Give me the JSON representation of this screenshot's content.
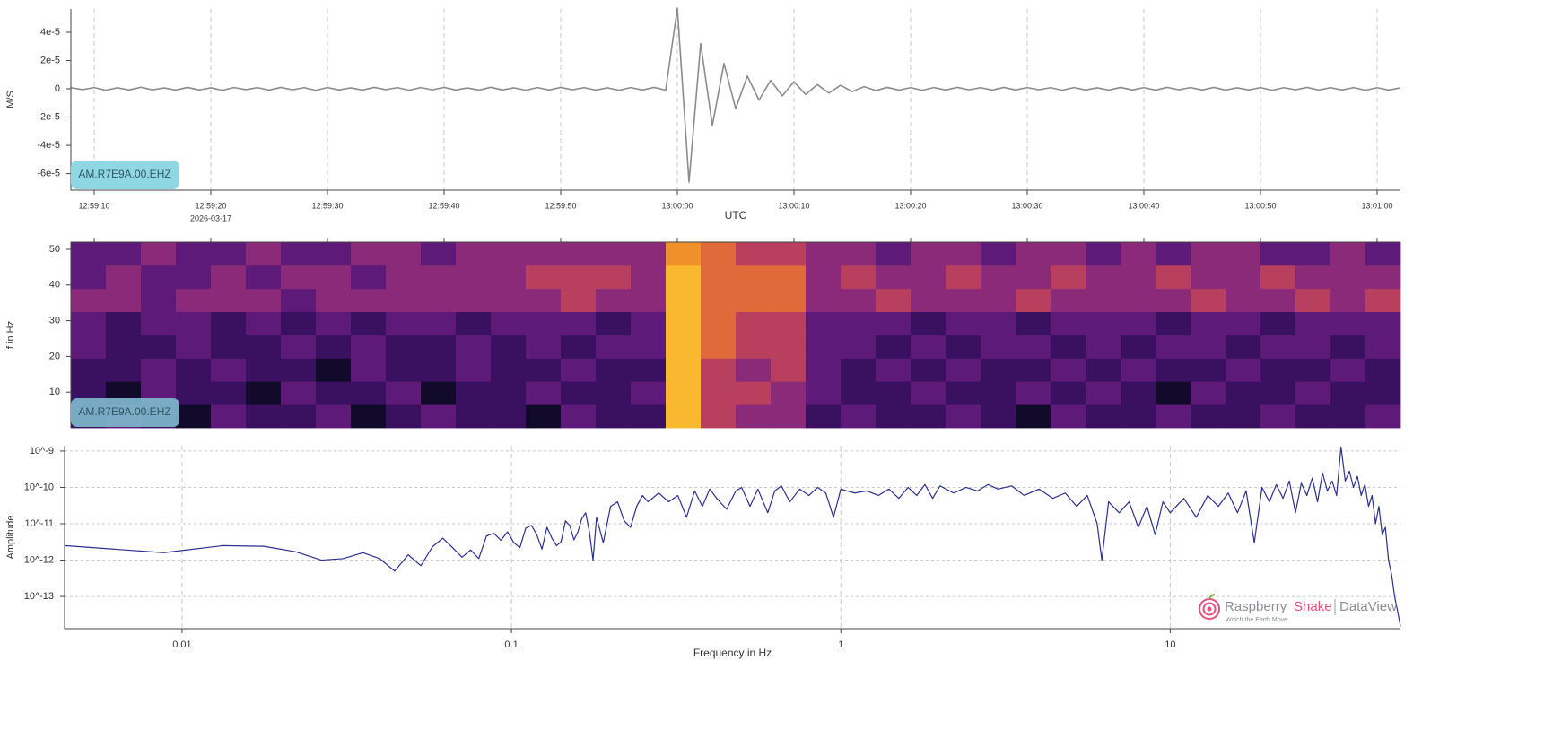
{
  "chart_data": [
    {
      "type": "line",
      "ylabel": "M/S",
      "xlabel": "UTC",
      "date_label": "2026-03-17",
      "station_label": "AM.R7E9A.00.EHZ",
      "color": "#8c8c8c",
      "grid": "x",
      "xlim": [
        "12:59:08",
        "13:01:02"
      ],
      "xticks": [
        "12:59:10",
        "12:59:20",
        "12:59:30",
        "12:59:40",
        "12:59:50",
        "13:00:00",
        "13:00:10",
        "13:00:20",
        "13:00:30",
        "13:00:40",
        "13:00:50",
        "13:01:00"
      ],
      "ylim": [
        -7.17e-05,
        5.65e-05
      ],
      "yticks": [
        {
          "value": 4e-05,
          "label": "4e-5"
        },
        {
          "value": 2e-05,
          "label": "2e-5"
        },
        0,
        {
          "value": -2e-05,
          "label": "-2e-5"
        },
        {
          "value": -4e-05,
          "label": "-4e-5"
        },
        {
          "value": -6e-05,
          "label": "-6e-5"
        }
      ],
      "x": [
        "12:59:08",
        "12:59:09",
        "12:59:10",
        "12:59:11",
        "12:59:12",
        "12:59:13",
        "12:59:14",
        "12:59:15",
        "12:59:16",
        "12:59:17",
        "12:59:18",
        "12:59:19",
        "12:59:20",
        "12:59:21",
        "12:59:22",
        "12:59:23",
        "12:59:24",
        "12:59:25",
        "12:59:26",
        "12:59:27",
        "12:59:28",
        "12:59:29",
        "12:59:30",
        "12:59:31",
        "12:59:32",
        "12:59:33",
        "12:59:34",
        "12:59:35",
        "12:59:36",
        "12:59:37",
        "12:59:38",
        "12:59:39",
        "12:59:40",
        "12:59:41",
        "12:59:42",
        "12:59:43",
        "12:59:44",
        "12:59:45",
        "12:59:46",
        "12:59:47",
        "12:59:48",
        "12:59:49",
        "12:59:50",
        "12:59:51",
        "12:59:52",
        "12:59:53",
        "12:59:54",
        "12:59:55",
        "12:59:56",
        "12:59:57",
        "12:59:58",
        "12:59:59",
        "13:00:00",
        "13:00:01",
        "13:00:02",
        "13:00:03",
        "13:00:04",
        "13:00:05",
        "13:00:06",
        "13:00:07",
        "13:00:08",
        "13:00:09",
        "13:00:10",
        "13:00:11",
        "13:00:12",
        "13:00:13",
        "13:00:14",
        "13:00:15",
        "13:00:16",
        "13:00:17",
        "13:00:18",
        "13:00:19",
        "13:00:20",
        "13:00:21",
        "13:00:22",
        "13:00:23",
        "13:00:24",
        "13:00:25",
        "13:00:26",
        "13:00:27",
        "13:00:28",
        "13:00:29",
        "13:00:30",
        "13:00:31",
        "13:00:32",
        "13:00:33",
        "13:00:34",
        "13:00:35",
        "13:00:36",
        "13:00:37",
        "13:00:38",
        "13:00:39",
        "13:00:40",
        "13:00:41",
        "13:00:42",
        "13:00:43",
        "13:00:44",
        "13:00:45",
        "13:00:46",
        "13:00:47",
        "13:00:48",
        "13:00:49",
        "13:00:50",
        "13:00:51",
        "13:00:52",
        "13:00:53",
        "13:00:54",
        "13:00:55",
        "13:00:56",
        "13:00:57",
        "13:00:58",
        "13:00:59",
        "13:01:00",
        "13:01:01",
        "13:01:02"
      ],
      "values": [
        8e-07,
        -6e-07,
        9e-07,
        -1e-06,
        7e-07,
        -8e-07,
        1.1e-06,
        -7e-07,
        6e-07,
        -9e-07,
        1e-06,
        -8e-07,
        7e-07,
        -1e-06,
        9e-07,
        -6e-07,
        8e-07,
        -9e-07,
        1e-06,
        -7e-07,
        8e-07,
        -1.1e-06,
        9e-07,
        -8e-07,
        7e-07,
        -9e-07,
        1e-06,
        -6e-07,
        8e-07,
        -1e-06,
        9e-07,
        -7e-07,
        1e-06,
        -8e-07,
        6e-07,
        -9e-07,
        1.1e-06,
        -8e-07,
        7e-07,
        -1e-06,
        9e-07,
        -8e-07,
        1e-06,
        -7e-07,
        8e-07,
        -9e-07,
        7e-07,
        -1e-06,
        9e-07,
        -8e-07,
        1e-06,
        -9e-07,
        5.7e-05,
        -6.6e-05,
        3.2e-05,
        -2.6e-05,
        1.8e-05,
        -1.4e-05,
        9e-06,
        -8e-06,
        6e-06,
        -5e-06,
        5e-06,
        -4e-06,
        3e-06,
        -3e-06,
        2.5e-06,
        -2e-06,
        1.5e-06,
        -1.2e-06,
        1e-06,
        -9e-07,
        8e-07,
        -1e-06,
        9e-07,
        -8e-07,
        1e-06,
        -7e-07,
        8e-07,
        -9e-07,
        1e-06,
        -8e-07,
        9e-07,
        -7e-07,
        8e-07,
        -1e-06,
        9e-07,
        -8e-07,
        7e-07,
        -9e-07,
        1e-06,
        -8e-07,
        8e-07,
        -9e-07,
        1e-06,
        -7e-07,
        9e-07,
        -8e-07,
        1e-06,
        -9e-07,
        7e-07,
        -8e-07,
        9e-07,
        -1e-06,
        8e-07,
        -7e-07,
        1e-06,
        -9e-07,
        8e-07,
        -8e-07,
        9e-07,
        -1e-06,
        8e-07,
        -9e-07,
        7e-07
      ]
    },
    {
      "type": "heatmap",
      "ylabel": "f in Hz",
      "station_label": "AM.R7E9A.00.EHZ",
      "colormap": [
        "#120a2a",
        "#3a1060",
        "#5e1a78",
        "#8a2a78",
        "#b8405e",
        "#e06a3a",
        "#f0902a",
        "#f8b830"
      ],
      "xlim": [
        "12:59:08",
        "13:01:02"
      ],
      "xticks": [
        "12:59:10",
        "12:59:20",
        "12:59:30",
        "12:59:40",
        "12:59:50",
        "13:00:00",
        "13:00:10",
        "13:00:20",
        "13:00:30",
        "13:00:40",
        "13:00:50",
        "13:01:00"
      ],
      "ylim": [
        0,
        52
      ],
      "yticks": [
        10,
        20,
        30,
        40,
        50
      ],
      "x": [
        "12:59:08",
        "12:59:11",
        "12:59:14",
        "12:59:17",
        "12:59:20",
        "12:59:23",
        "12:59:26",
        "12:59:29",
        "12:59:32",
        "12:59:35",
        "12:59:38",
        "12:59:41",
        "12:59:44",
        "12:59:47",
        "12:59:50",
        "12:59:53",
        "12:59:56",
        "12:59:59",
        "13:00:02",
        "13:00:05",
        "13:00:08",
        "13:00:11",
        "13:00:14",
        "13:00:17",
        "13:00:20",
        "13:00:23",
        "13:00:26",
        "13:00:29",
        "13:00:32",
        "13:00:35",
        "13:00:38",
        "13:00:41",
        "13:00:44",
        "13:00:47",
        "13:00:50",
        "13:00:53",
        "13:00:56",
        "13:00:59",
        "13:01:02"
      ],
      "ybins": [
        0,
        6.5,
        13,
        19.5,
        26,
        32.5,
        39,
        45.5,
        52
      ],
      "z": [
        [
          3,
          4,
          3,
          2,
          4,
          3,
          3,
          4,
          2,
          3,
          4,
          3,
          3,
          2,
          4,
          3,
          3,
          9,
          6,
          5,
          5,
          3,
          4,
          3,
          3,
          4,
          3,
          2,
          4,
          3,
          3,
          4,
          3,
          3,
          4,
          3,
          3,
          4
        ],
        [
          3,
          2,
          4,
          3,
          3,
          2,
          4,
          3,
          3,
          4,
          2,
          3,
          3,
          4,
          3,
          3,
          4,
          9,
          6,
          6,
          5,
          4,
          3,
          3,
          4,
          3,
          3,
          4,
          3,
          4,
          3,
          2,
          4,
          3,
          3,
          4,
          3,
          3
        ],
        [
          3,
          3,
          4,
          3,
          4,
          3,
          3,
          2,
          4,
          3,
          3,
          4,
          3,
          3,
          4,
          3,
          3,
          9,
          6,
          5,
          6,
          4,
          3,
          4,
          3,
          4,
          3,
          3,
          4,
          3,
          4,
          3,
          3,
          4,
          3,
          3,
          4,
          3
        ],
        [
          4,
          3,
          3,
          4,
          3,
          3,
          4,
          3,
          4,
          3,
          3,
          4,
          3,
          4,
          3,
          4,
          4,
          9,
          7,
          6,
          6,
          4,
          4,
          3,
          4,
          3,
          4,
          4,
          3,
          4,
          3,
          4,
          4,
          3,
          4,
          4,
          3,
          4
        ],
        [
          4,
          3,
          4,
          4,
          3,
          4,
          3,
          4,
          3,
          4,
          4,
          3,
          4,
          4,
          4,
          3,
          4,
          9,
          7,
          6,
          6,
          4,
          4,
          4,
          3,
          4,
          4,
          3,
          4,
          4,
          4,
          3,
          4,
          4,
          3,
          4,
          4,
          4
        ],
        [
          5,
          5,
          4,
          5,
          5,
          5,
          4,
          5,
          5,
          5,
          5,
          5,
          5,
          5,
          6,
          5,
          5,
          9,
          7,
          7,
          7,
          5,
          5,
          6,
          5,
          5,
          5,
          6,
          5,
          5,
          5,
          5,
          6,
          5,
          5,
          6,
          5,
          6
        ],
        [
          4,
          5,
          4,
          4,
          5,
          4,
          5,
          5,
          4,
          5,
          5,
          5,
          5,
          6,
          6,
          6,
          5,
          9,
          7,
          7,
          7,
          5,
          6,
          5,
          5,
          6,
          5,
          5,
          6,
          5,
          5,
          6,
          5,
          5,
          6,
          5,
          5,
          5
        ],
        [
          4,
          4,
          5,
          4,
          4,
          5,
          4,
          4,
          5,
          5,
          4,
          5,
          5,
          5,
          5,
          5,
          5,
          8,
          7,
          6,
          6,
          5,
          5,
          4,
          5,
          5,
          4,
          5,
          5,
          4,
          5,
          4,
          5,
          5,
          4,
          4,
          5,
          4
        ]
      ]
    },
    {
      "type": "line",
      "ylabel": "Amplitude",
      "xlabel": "Frequency in Hz",
      "color": "#2b2f8f",
      "grid": "both",
      "xscale": "log",
      "yscale": "log",
      "xlim": [
        0.0044,
        50
      ],
      "xticks": [
        0.01,
        0.1,
        1,
        10
      ],
      "ylim": [
        1.3e-14,
        1.4e-09
      ],
      "yticks": [
        {
          "value": 1e-09,
          "label": "10^-9"
        },
        {
          "value": 1e-10,
          "label": "10^-10"
        },
        {
          "value": 1e-11,
          "label": "10^-11"
        },
        {
          "value": 1e-12,
          "label": "10^-12"
        },
        {
          "value": 1e-13,
          "label": "10^-13"
        }
      ],
      "x": [
        0.0044,
        0.0088,
        0.0133,
        0.0177,
        0.0221,
        0.0265,
        0.0309,
        0.0354,
        0.0398,
        0.0442,
        0.0486,
        0.0531,
        0.0575,
        0.0619,
        0.0663,
        0.0708,
        0.0752,
        0.0796,
        0.084,
        0.0884,
        0.0929,
        0.0973,
        0.1017,
        0.1061,
        0.1105,
        0.115,
        0.1194,
        0.1238,
        0.1282,
        0.1327,
        0.1371,
        0.1415,
        0.1459,
        0.1503,
        0.1548,
        0.1592,
        0.1636,
        0.168,
        0.1725,
        0.1769,
        0.1813,
        0.19,
        0.2,
        0.21,
        0.22,
        0.23,
        0.24,
        0.25,
        0.26,
        0.28,
        0.3,
        0.32,
        0.34,
        0.36,
        0.38,
        0.4,
        0.42,
        0.45,
        0.48,
        0.5,
        0.53,
        0.56,
        0.6,
        0.63,
        0.66,
        0.7,
        0.75,
        0.8,
        0.85,
        0.9,
        0.95,
        1.0,
        1.1,
        1.2,
        1.3,
        1.4,
        1.5,
        1.6,
        1.7,
        1.8,
        1.9,
        2.0,
        2.2,
        2.4,
        2.6,
        2.8,
        3.0,
        3.3,
        3.6,
        4.0,
        4.4,
        4.8,
        5.2,
        5.6,
        6.0,
        6.2,
        6.5,
        7.0,
        7.5,
        8.0,
        8.5,
        9.0,
        9.5,
        10,
        11,
        12,
        13,
        14,
        15,
        16,
        17,
        18,
        19,
        20,
        21,
        22,
        23,
        24,
        25,
        26,
        27,
        28,
        29,
        30,
        31,
        32,
        33,
        34,
        35,
        36,
        37,
        38,
        39,
        40,
        41,
        42,
        43,
        44,
        45,
        46,
        47,
        48,
        49,
        50
      ],
      "values": [
        2.5e-12,
        1.6e-12,
        2.5e-12,
        2.4e-12,
        1.7e-12,
        1e-12,
        1.1e-12,
        1.6e-12,
        1.1e-12,
        5e-13,
        1.4e-12,
        7e-13,
        2.3e-12,
        4e-12,
        2.2e-12,
        1.2e-12,
        1.9e-12,
        1.1e-12,
        4.6e-12,
        5.5e-12,
        3.5e-12,
        6e-12,
        3e-12,
        2.2e-12,
        7.5e-12,
        9e-12,
        5e-12,
        2e-12,
        8e-12,
        4e-12,
        2.5e-12,
        3.2e-12,
        1.2e-11,
        9e-12,
        3.6e-12,
        6e-12,
        1.4e-11,
        2e-11,
        6e-12,
        1e-12,
        1.5e-11,
        3e-12,
        3e-11,
        4e-11,
        1.2e-11,
        8e-12,
        3e-11,
        6e-11,
        4e-11,
        7e-11,
        4e-11,
        6e-11,
        1.5e-11,
        8e-11,
        3e-11,
        9e-11,
        5e-11,
        2.5e-11,
        8e-11,
        1e-10,
        3e-11,
        9e-11,
        2e-11,
        8e-11,
        1.1e-10,
        4e-11,
        9e-11,
        6e-11,
        1e-10,
        7e-11,
        1.5e-11,
        9e-11,
        7e-11,
        8e-11,
        6e-11,
        9e-11,
        5e-11,
        1e-10,
        6e-11,
        1.2e-10,
        5e-11,
        1.1e-10,
        7e-11,
        1e-10,
        8e-11,
        1.2e-10,
        9e-11,
        1.1e-10,
        6e-11,
        9e-11,
        5e-11,
        7e-11,
        3e-11,
        6e-11,
        1e-11,
        1e-12,
        4e-11,
        2e-11,
        4e-11,
        8e-12,
        3e-11,
        5e-12,
        4e-11,
        2e-11,
        5e-11,
        1.5e-11,
        6e-11,
        3e-11,
        7e-11,
        2e-11,
        8e-11,
        3e-12,
        1e-10,
        4e-11,
        1.2e-10,
        5e-11,
        1.5e-10,
        2e-11,
        1.3e-10,
        6e-11,
        1.8e-10,
        4e-11,
        2.5e-10,
        8e-11,
        1.5e-10,
        6e-11,
        1.3e-09,
        1.5e-10,
        2.8e-10,
        1e-10,
        2e-10,
        6e-11,
        1.2e-10,
        3e-11,
        6e-11,
        1e-11,
        3e-11,
        5e-12,
        8e-12,
        1e-12,
        4e-13,
        1e-13,
        4e-14,
        1.5e-14
      ]
    }
  ],
  "watermark": {
    "brand": "Raspberry",
    "brand_accent": "Shake",
    "product": "DataView",
    "tagline": "Watch the Earth Move"
  }
}
